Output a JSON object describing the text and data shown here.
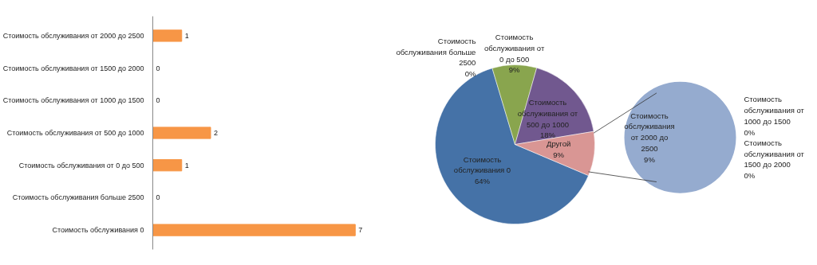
{
  "chart_data": [
    {
      "type": "bar",
      "orientation": "horizontal",
      "categories": [
        "Стоимость обслуживания от 2000 до 2500",
        "Стоимость обслуживания от 1500 до 2000",
        "Стоимость обслуживания от 1000 до 1500",
        "Стоимость обслуживания от 500 до 1000",
        "Стоимость обслуживания от 0 до 500",
        "Стоимость обслуживания больше 2500",
        "Стоимость обслуживания 0"
      ],
      "values": [
        1,
        0,
        0,
        2,
        1,
        0,
        7
      ],
      "color": "#f79646",
      "data_labels": true
    },
    {
      "type": "pie",
      "categories": [
        "Стоимость обслуживания 0",
        "Стоимость обслуживания больше 2500",
        "Стоимость обслуживания от 0 до 500",
        "Стоимость обслуживания от 500 до 1000",
        "Другой"
      ],
      "values": [
        64,
        0,
        9,
        18,
        9
      ],
      "value_labels": [
        "64%",
        "0%",
        "9%",
        "18%",
        "9%"
      ],
      "colors": [
        "#4572a7",
        "#aa4643",
        "#89a54e",
        "#71588f",
        "#d99694"
      ]
    },
    {
      "type": "pie",
      "categories": [
        "Стоимость обслуживания от 2000 до 2500",
        "Стоимость обслуживания от 1000 до 1500",
        "Стоимость обслуживания от 1500 до 2000"
      ],
      "values": [
        9,
        0,
        0
      ],
      "value_labels": [
        "9%",
        "0%",
        "0%"
      ],
      "colors": [
        "#95abcf",
        "#4572a7",
        "#aa4643"
      ]
    }
  ]
}
